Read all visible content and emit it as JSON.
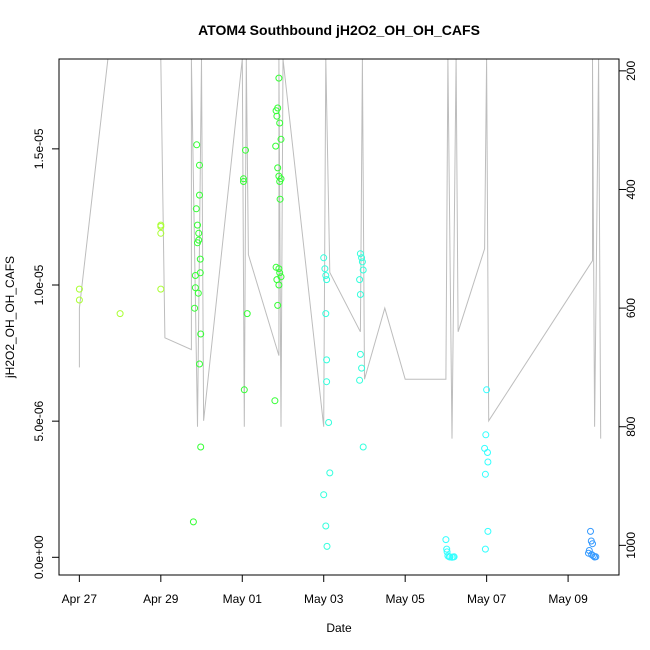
{
  "chart_data": {
    "type": "scatter",
    "title": "ATOM4 Southbound jH2O2_OH_OH_CAFS",
    "xlabel": "Date",
    "ylabel": "jH2O2_OH_OH_CAFS",
    "x_ticks": [
      "Apr 27",
      "Apr 29",
      "May 01",
      "May 03",
      "May 05",
      "May 07",
      "May 09"
    ],
    "x_tick_days": [
      27,
      29,
      31,
      33,
      35,
      37,
      39
    ],
    "xlim": [
      26.5,
      40.25
    ],
    "y_ticks": [
      0,
      5e-06,
      1e-05,
      1.5e-05
    ],
    "y_tick_labels": [
      "0.0e+00",
      "5.0e-06",
      "1.0e-05",
      "1.5e-05"
    ],
    "ylim": [
      -6.5e-07,
      1.83e-05
    ],
    "y2_ticks": [
      200,
      400,
      600,
      800,
      1000
    ],
    "y2_tick_labels": [
      "200",
      "400",
      "600",
      "800",
      "1000"
    ],
    "y2lim": [
      1050,
      180
    ],
    "y2_reversed": true,
    "grid": false,
    "legend": "none",
    "marker": "open-circle",
    "color_map": "day-of-campaign: yellow-green to green to cyan to blue",
    "series": [
      {
        "points": [
          [
            27.0,
            9.85e-06
          ],
          [
            27.0,
            9.45e-06
          ],
          [
            28.0,
            8.95e-06
          ],
          [
            29.0,
            1.22e-05
          ],
          [
            29.0,
            1.215e-05
          ],
          [
            29.0,
            1.19e-05
          ],
          [
            29.0,
            9.85e-06
          ],
          [
            29.83,
            9.15e-06
          ],
          [
            29.8,
            1.3e-06
          ],
          [
            29.85,
            9.9e-06
          ],
          [
            29.85,
            1.035e-05
          ],
          [
            29.87,
            1.28e-05
          ],
          [
            29.88,
            1.515e-05
          ],
          [
            29.9,
            1.22e-05
          ],
          [
            29.9,
            1.155e-05
          ],
          [
            29.92,
            9.7e-06
          ],
          [
            29.93,
            1.165e-05
          ],
          [
            29.93,
            1.19e-05
          ],
          [
            29.95,
            1.44e-05
          ],
          [
            29.95,
            1.33e-05
          ],
          [
            29.95,
            7.1e-06
          ],
          [
            29.97,
            1.095e-05
          ],
          [
            29.97,
            1.045e-05
          ],
          [
            29.98,
            8.2e-06
          ],
          [
            29.98,
            4.05e-06
          ],
          [
            31.03,
            1.39e-05
          ],
          [
            31.03,
            1.38e-05
          ],
          [
            31.05,
            6.15e-06
          ],
          [
            31.08,
            1.495e-05
          ],
          [
            31.12,
            8.95e-06
          ],
          [
            31.82,
            1.51e-05
          ],
          [
            31.83,
            1.64e-05
          ],
          [
            31.85,
            1.62e-05
          ],
          [
            31.87,
            1.65e-05
          ],
          [
            31.9,
            1.76e-05
          ],
          [
            31.92,
            1.595e-05
          ],
          [
            31.95,
            1.535e-05
          ],
          [
            31.87,
            1.43e-05
          ],
          [
            31.9,
            1.4e-05
          ],
          [
            31.92,
            1.38e-05
          ],
          [
            31.93,
            1.315e-05
          ],
          [
            31.95,
            1.39e-05
          ],
          [
            31.83,
            1.065e-05
          ],
          [
            31.85,
            1.02e-05
          ],
          [
            31.87,
            9.25e-06
          ],
          [
            31.9,
            1e-05
          ],
          [
            31.9,
            1.06e-05
          ],
          [
            31.92,
            1.045e-05
          ],
          [
            31.95,
            1.03e-05
          ],
          [
            31.8,
            5.75e-06
          ]
        ]
      },
      {
        "points": [
          [
            33.0,
            1.1e-05
          ],
          [
            33.03,
            1.06e-05
          ],
          [
            33.05,
            1.035e-05
          ],
          [
            33.07,
            1.02e-05
          ],
          [
            33.05,
            8.95e-06
          ],
          [
            33.07,
            7.25e-06
          ],
          [
            33.07,
            6.45e-06
          ],
          [
            33.12,
            4.95e-06
          ],
          [
            33.15,
            3.1e-06
          ],
          [
            33.0,
            2.3e-06
          ],
          [
            33.05,
            1.15e-06
          ],
          [
            33.08,
            4e-07
          ],
          [
            33.9,
            1.115e-05
          ],
          [
            33.93,
            1.1e-05
          ],
          [
            33.95,
            1.085e-05
          ],
          [
            33.97,
            1.055e-05
          ],
          [
            33.88,
            1.02e-05
          ],
          [
            33.9,
            9.65e-06
          ],
          [
            33.9,
            7.45e-06
          ],
          [
            33.93,
            6.95e-06
          ],
          [
            33.88,
            6.5e-06
          ],
          [
            33.97,
            4.05e-06
          ]
        ]
      },
      {
        "points": [
          [
            36.0,
            6.5e-07
          ],
          [
            36.02,
            3e-07
          ],
          [
            36.03,
            2e-07
          ],
          [
            36.05,
            5e-08
          ],
          [
            36.08,
            2e-08
          ],
          [
            36.1,
            1e-08
          ],
          [
            36.15,
            0.0
          ],
          [
            36.18,
            1e-08
          ],
          [
            36.2,
            2e-08
          ],
          [
            37.0,
            6.15e-06
          ],
          [
            36.98,
            4.5e-06
          ],
          [
            36.95,
            4e-06
          ],
          [
            37.02,
            3.85e-06
          ],
          [
            37.03,
            3.5e-06
          ],
          [
            36.97,
            3.05e-06
          ],
          [
            37.03,
            9.5e-07
          ],
          [
            36.97,
            3e-07
          ]
        ]
      },
      {
        "points": [
          [
            39.55,
            9.5e-07
          ],
          [
            39.5,
            1.5e-07
          ],
          [
            39.52,
            2.5e-07
          ],
          [
            39.57,
            6e-07
          ],
          [
            39.6,
            5e-07
          ],
          [
            39.62,
            5e-08
          ],
          [
            39.65,
            1e-08
          ],
          [
            39.58,
            1e-07
          ],
          [
            39.68,
            2e-08
          ]
        ]
      }
    ],
    "palette": [
      "#aaff33",
      "#33ff33",
      "#33ffdd",
      "#33ffff",
      "#3399ff"
    ],
    "flight_track_color": "#bdbdbd"
  }
}
